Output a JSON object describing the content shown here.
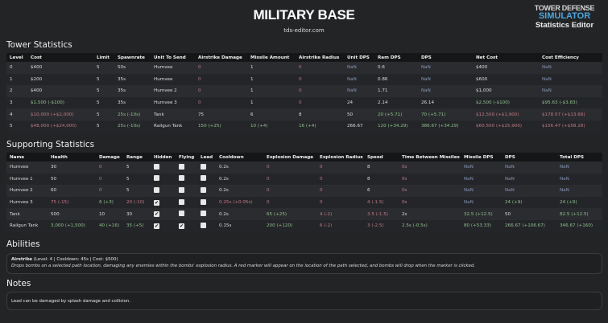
{
  "header": {
    "title": "MILITARY BASE",
    "subtitle": "tds-editor.com",
    "logo": {
      "line1": "TOWER DEFENSE",
      "line2": "SIMULATOR",
      "line3": "Statistics Editor"
    }
  },
  "colors": {
    "background": "#222426",
    "header_row": "#151617",
    "increase_good": "#8fc28f",
    "increase_bad": "#c07b86",
    "nan": "#8797b8"
  },
  "tower": {
    "title": "Tower Statistics",
    "columns": [
      "Level",
      "Cost",
      "Limit",
      "Spawnrate",
      "Unit To Send",
      "Airstrike Damage",
      "Missile Amount",
      "Airstrike Radius",
      "Unit DPS",
      "Ram DPS",
      "DPS",
      "Net Cost",
      "Cost Efficiency"
    ],
    "rows": [
      [
        [
          "0",
          ""
        ],
        [
          "$400",
          ""
        ],
        [
          "5",
          ""
        ],
        [
          "50s",
          ""
        ],
        [
          "Humvee",
          ""
        ],
        [
          "0",
          "zero"
        ],
        [
          "1",
          ""
        ],
        [
          "0",
          "zero"
        ],
        [
          "NaN",
          "nan"
        ],
        [
          "0.6",
          ""
        ],
        [
          "NaN",
          "nan"
        ],
        [
          "$400",
          ""
        ],
        [
          "NaN",
          "nan"
        ]
      ],
      [
        [
          "1",
          ""
        ],
        [
          "$200",
          ""
        ],
        [
          "5",
          ""
        ],
        [
          "35s",
          ""
        ],
        [
          "Humvee",
          ""
        ],
        [
          "0",
          "zero"
        ],
        [
          "1",
          ""
        ],
        [
          "0",
          "zero"
        ],
        [
          "NaN",
          "nan"
        ],
        [
          "0.86",
          ""
        ],
        [
          "NaN",
          "nan"
        ],
        [
          "$600",
          ""
        ],
        [
          "NaN",
          "nan"
        ]
      ],
      [
        [
          "2",
          ""
        ],
        [
          "$400",
          ""
        ],
        [
          "5",
          ""
        ],
        [
          "35s",
          ""
        ],
        [
          "Humvee 2",
          ""
        ],
        [
          "0",
          "zero"
        ],
        [
          "1",
          ""
        ],
        [
          "0",
          "zero"
        ],
        [
          "NaN",
          "nan"
        ],
        [
          "1.71",
          ""
        ],
        [
          "NaN",
          "nan"
        ],
        [
          "$1,000",
          ""
        ],
        [
          "NaN",
          "nan"
        ]
      ],
      [
        [
          "3",
          ""
        ],
        [
          "$1,500 (-$100)",
          "up"
        ],
        [
          "5",
          ""
        ],
        [
          "35s",
          ""
        ],
        [
          "Humvee 3",
          ""
        ],
        [
          "0",
          "zero"
        ],
        [
          "1",
          ""
        ],
        [
          "0",
          "zero"
        ],
        [
          "24",
          ""
        ],
        [
          "2.14",
          ""
        ],
        [
          "26.14",
          ""
        ],
        [
          "$2,500 (-$100)",
          "up"
        ],
        [
          "$95.63 (-$3.83)",
          "up"
        ]
      ],
      [
        [
          "4",
          ""
        ],
        [
          "$10,000 (+$2,000)",
          "down"
        ],
        [
          "5",
          ""
        ],
        [
          "25s (-10s)",
          "up"
        ],
        [
          "Tank",
          ""
        ],
        [
          "75",
          ""
        ],
        [
          "6",
          ""
        ],
        [
          "8",
          ""
        ],
        [
          "50",
          ""
        ],
        [
          "20 (+5.71)",
          "up"
        ],
        [
          "70 (+5.71)",
          "up"
        ],
        [
          "$12,500 (+$1,900)",
          "down"
        ],
        [
          "$178.57 (+$13.68)",
          "down"
        ]
      ],
      [
        [
          "5",
          ""
        ],
        [
          "$48,000 (+$24,000)",
          "down"
        ],
        [
          "5",
          ""
        ],
        [
          "25s (-10s)",
          "up"
        ],
        [
          "Railgun Tank",
          ""
        ],
        [
          "150 (+25)",
          "up"
        ],
        [
          "10 (+4)",
          "up"
        ],
        [
          "16 (+4)",
          "up"
        ],
        [
          "266.67",
          ""
        ],
        [
          "120 (+34.29)",
          "up"
        ],
        [
          "386.67 (+34.29)",
          "up"
        ],
        [
          "$60,500 (+$25,900)",
          "down"
        ],
        [
          "$156.47 (+$58.28)",
          "down"
        ]
      ]
    ]
  },
  "supporting": {
    "title": "Supporting Statistics",
    "columns": [
      "Name",
      "Health",
      "Damage",
      "Range",
      "Hidden",
      "Flying",
      "Lead",
      "Cooldown",
      "Explosion Damage",
      "Explosion Radius",
      "Speed",
      "Time Between Missiles",
      "Missile DPS",
      "DPS",
      "Total DPS"
    ],
    "rows": [
      [
        [
          "Humvee",
          ""
        ],
        [
          "30",
          ""
        ],
        [
          "0",
          "zero"
        ],
        [
          "5",
          ""
        ],
        [
          false
        ],
        [
          false
        ],
        [
          false
        ],
        [
          "0.2s",
          ""
        ],
        [
          "0",
          "zero"
        ],
        [
          "0",
          "zero"
        ],
        [
          "8",
          ""
        ],
        [
          "0s",
          "zero"
        ],
        [
          "NaN",
          "nan"
        ],
        [
          "NaN",
          "nan"
        ],
        [
          "NaN",
          "nan"
        ]
      ],
      [
        [
          "Humvee 1",
          ""
        ],
        [
          "50",
          ""
        ],
        [
          "0",
          "zero"
        ],
        [
          "5",
          ""
        ],
        [
          false
        ],
        [
          false
        ],
        [
          false
        ],
        [
          "0.2s",
          ""
        ],
        [
          "0",
          "zero"
        ],
        [
          "0",
          "zero"
        ],
        [
          "8",
          ""
        ],
        [
          "0s",
          "zero"
        ],
        [
          "NaN",
          "nan"
        ],
        [
          "NaN",
          "nan"
        ],
        [
          "NaN",
          "nan"
        ]
      ],
      [
        [
          "Humvee 2",
          ""
        ],
        [
          "60",
          ""
        ],
        [
          "0",
          "zero"
        ],
        [
          "5",
          ""
        ],
        [
          false
        ],
        [
          false
        ],
        [
          false
        ],
        [
          "0.2s",
          ""
        ],
        [
          "0",
          "zero"
        ],
        [
          "0",
          "zero"
        ],
        [
          "6",
          ""
        ],
        [
          "0s",
          "zero"
        ],
        [
          "NaN",
          "nan"
        ],
        [
          "NaN",
          "nan"
        ],
        [
          "NaN",
          "nan"
        ]
      ],
      [
        [
          "Humvee 3",
          ""
        ],
        [
          "75 (-15)",
          "down"
        ],
        [
          "6 (+3)",
          "up"
        ],
        [
          "20 (-10)",
          "down"
        ],
        [
          true
        ],
        [
          false
        ],
        [
          false
        ],
        [
          "0.25s (+0.05s)",
          "down"
        ],
        [
          "0",
          "zero"
        ],
        [
          "0",
          "zero"
        ],
        [
          "4 (-1.5)",
          "down"
        ],
        [
          "0s",
          "zero"
        ],
        [
          "NaN",
          "nan"
        ],
        [
          "24 (+9)",
          "up"
        ],
        [
          "24 (+9)",
          "up"
        ]
      ],
      [
        [
          "Tank",
          ""
        ],
        [
          "500",
          ""
        ],
        [
          "10",
          ""
        ],
        [
          "30",
          ""
        ],
        [
          true
        ],
        [
          false
        ],
        [
          false
        ],
        [
          "0.2s",
          ""
        ],
        [
          "65 (+25)",
          "up"
        ],
        [
          "4 (-2)",
          "down"
        ],
        [
          "3.5 (-1.5)",
          "down"
        ],
        [
          "2s",
          ""
        ],
        [
          "32.5 (+12.5)",
          "up"
        ],
        [
          "50",
          ""
        ],
        [
          "82.5 (+12.5)",
          "up"
        ]
      ],
      [
        [
          "Railgun Tank",
          ""
        ],
        [
          "3,000 (+1,500)",
          "up"
        ],
        [
          "40 (+16)",
          "up"
        ],
        [
          "35 (+5)",
          "up"
        ],
        [
          true
        ],
        [
          true
        ],
        [
          false
        ],
        [
          "0.15s",
          ""
        ],
        [
          "200 (+120)",
          "up"
        ],
        [
          "6 (-2)",
          "down"
        ],
        [
          "3 (-2.5)",
          "down"
        ],
        [
          "2.5s (-0.5s)",
          "up"
        ],
        [
          "80 (+53.33)",
          "up"
        ],
        [
          "266.67 (+106.67)",
          "up"
        ],
        [
          "346.67 (+160)",
          "up"
        ]
      ]
    ]
  },
  "abilities": {
    "title": "Abilities",
    "items": [
      {
        "name": "Airstrike",
        "meta": "(Level: 4 | Cooldown: 45s | Cost: $500)",
        "description": "Drops bombs on a selected path location, damaging any enemies within the bombs' explosion radius. A red marker will appear on the location of the path selected, and bombs will drop when the marker is clicked."
      }
    ]
  },
  "notes": {
    "title": "Notes",
    "text": "Lead can be damaged by splash damage and collision."
  }
}
